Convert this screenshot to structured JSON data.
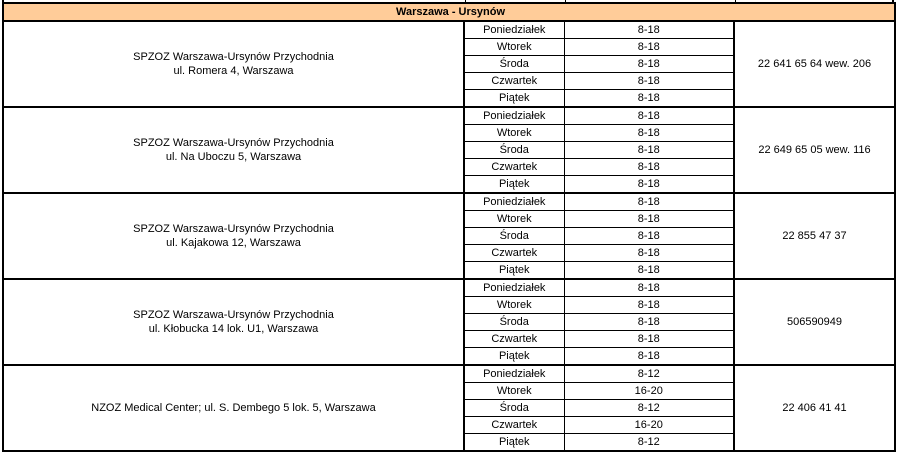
{
  "section_title": "Warszawa - Ursynów",
  "clinics": [
    {
      "name": "SPZOZ Warszawa-Ursynów Przychodnia",
      "address": "ul. Romera 4, Warszawa",
      "phone": "22 641 65 64 wew. 206",
      "schedule": [
        {
          "day": "Poniedziałek",
          "hours": "8-18"
        },
        {
          "day": "Wtorek",
          "hours": "8-18"
        },
        {
          "day": "Środa",
          "hours": "8-18"
        },
        {
          "day": "Czwartek",
          "hours": "8-18"
        },
        {
          "day": "Piątek",
          "hours": "8-18"
        }
      ]
    },
    {
      "name": "SPZOZ Warszawa-Ursynów Przychodnia",
      "address": "ul. Na Uboczu 5, Warszawa",
      "phone": "22 649 65 05 wew. 116",
      "schedule": [
        {
          "day": "Poniedziałek",
          "hours": "8-18"
        },
        {
          "day": "Wtorek",
          "hours": "8-18"
        },
        {
          "day": "Środa",
          "hours": "8-18"
        },
        {
          "day": "Czwartek",
          "hours": "8-18"
        },
        {
          "day": "Piątek",
          "hours": "8-18"
        }
      ]
    },
    {
      "name": "SPZOZ Warszawa-Ursynów Przychodnia",
      "address": "ul. Kajakowa 12, Warszawa",
      "phone": "22 855 47 37",
      "schedule": [
        {
          "day": "Poniedziałek",
          "hours": "8-18"
        },
        {
          "day": "Wtorek",
          "hours": "8-18"
        },
        {
          "day": "Środa",
          "hours": "8-18"
        },
        {
          "day": "Czwartek",
          "hours": "8-18"
        },
        {
          "day": "Piątek",
          "hours": "8-18"
        }
      ]
    },
    {
      "name": "SPZOZ Warszawa-Ursynów Przychodnia",
      "address": "ul. Kłobucka 14 lok. U1, Warszawa",
      "phone": "506590949",
      "schedule": [
        {
          "day": "Poniedziałek",
          "hours": "8-18"
        },
        {
          "day": "Wtorek",
          "hours": "8-18"
        },
        {
          "day": "Środa",
          "hours": "8-18"
        },
        {
          "day": "Czwartek",
          "hours": "8-18"
        },
        {
          "day": "Piątek",
          "hours": "8-18"
        }
      ]
    },
    {
      "name": "NZOZ Medical Center; ul. S. Dembego 5 lok. 5, Warszawa",
      "address": "",
      "phone": "22 406 41 41",
      "schedule": [
        {
          "day": "Poniedziałek",
          "hours": "8-12"
        },
        {
          "day": "Wtorek",
          "hours": "16-20"
        },
        {
          "day": "Środa",
          "hours": "8-12"
        },
        {
          "day": "Czwartek",
          "hours": "16-20"
        },
        {
          "day": "Piątek",
          "hours": "8-12"
        }
      ]
    }
  ],
  "colors": {
    "section_header_bg": "#FFCC99"
  }
}
